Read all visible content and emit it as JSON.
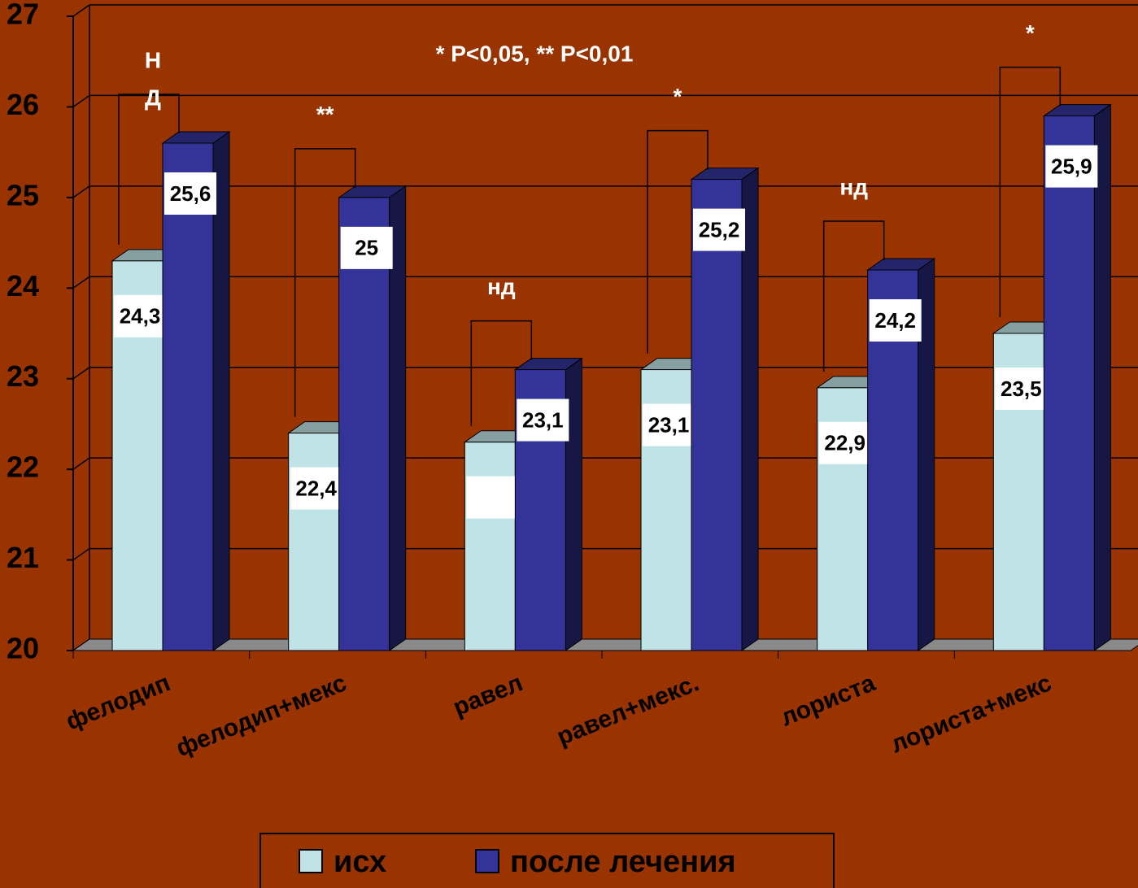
{
  "chart_data": {
    "type": "bar3d",
    "note": "* P<0,05, ** P<0,01",
    "categories": [
      "фелодип",
      "фелодип+мекс",
      "равел",
      "равел+мекс.",
      "лориста",
      "лориста+мекс"
    ],
    "series": [
      {
        "name": "исх",
        "color": "#bfe3e6",
        "values": [
          24.3,
          22.4,
          22.3,
          23.1,
          22.9,
          23.5
        ],
        "value_labels": [
          "24,3",
          "22,4",
          null,
          "23,1",
          "22,9",
          "23,5"
        ]
      },
      {
        "name": "после лечения",
        "color": "#333399",
        "values": [
          25.6,
          25,
          23.1,
          25.2,
          24.2,
          25.9
        ],
        "value_labels": [
          "25,6",
          "25",
          "23,1",
          "25,2",
          "24,2",
          "25,9"
        ]
      }
    ],
    "significance": [
      [
        "Н",
        "Д"
      ],
      [
        "**"
      ],
      [
        "нд"
      ],
      [
        "*"
      ],
      [
        "нд"
      ],
      [
        "*"
      ]
    ],
    "ylim": [
      20,
      27
    ],
    "yticks": [
      20,
      21,
      22,
      23,
      24,
      25,
      26,
      27
    ],
    "grid": true,
    "legend": "bottom"
  }
}
